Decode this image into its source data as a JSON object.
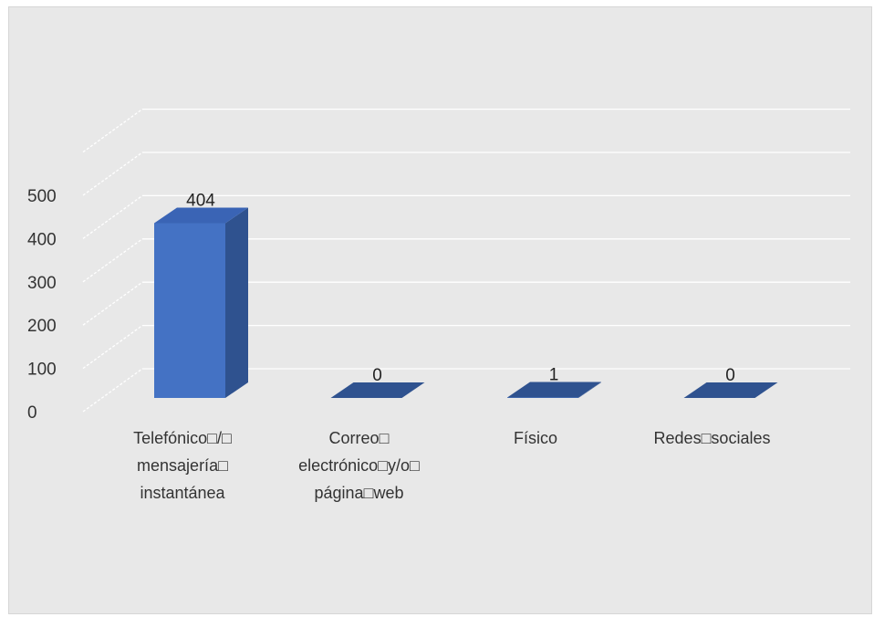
{
  "chart_data": {
    "type": "bar",
    "style": "3d-column",
    "categories": [
      [
        "Telefónico□/□",
        "mensajería□",
        "instantánea"
      ],
      [
        "Correo□",
        "electrónico□y/o□",
        "página□web"
      ],
      [
        "Físico"
      ],
      [
        "Redes□sociales"
      ]
    ],
    "values": [
      404,
      0,
      1,
      0
    ],
    "data_labels": [
      "404",
      "0",
      "1",
      "0"
    ],
    "y_ticks": [
      "0",
      "100",
      "200",
      "300",
      "400",
      "500"
    ],
    "ylim": [
      0,
      500
    ],
    "grid": true,
    "colors": {
      "bar_front": "#4472c4",
      "bar_side": "#2f528f",
      "bar_top": "#3a64b5",
      "background": "#e8e8e8",
      "gridline": "#ffffff"
    }
  }
}
